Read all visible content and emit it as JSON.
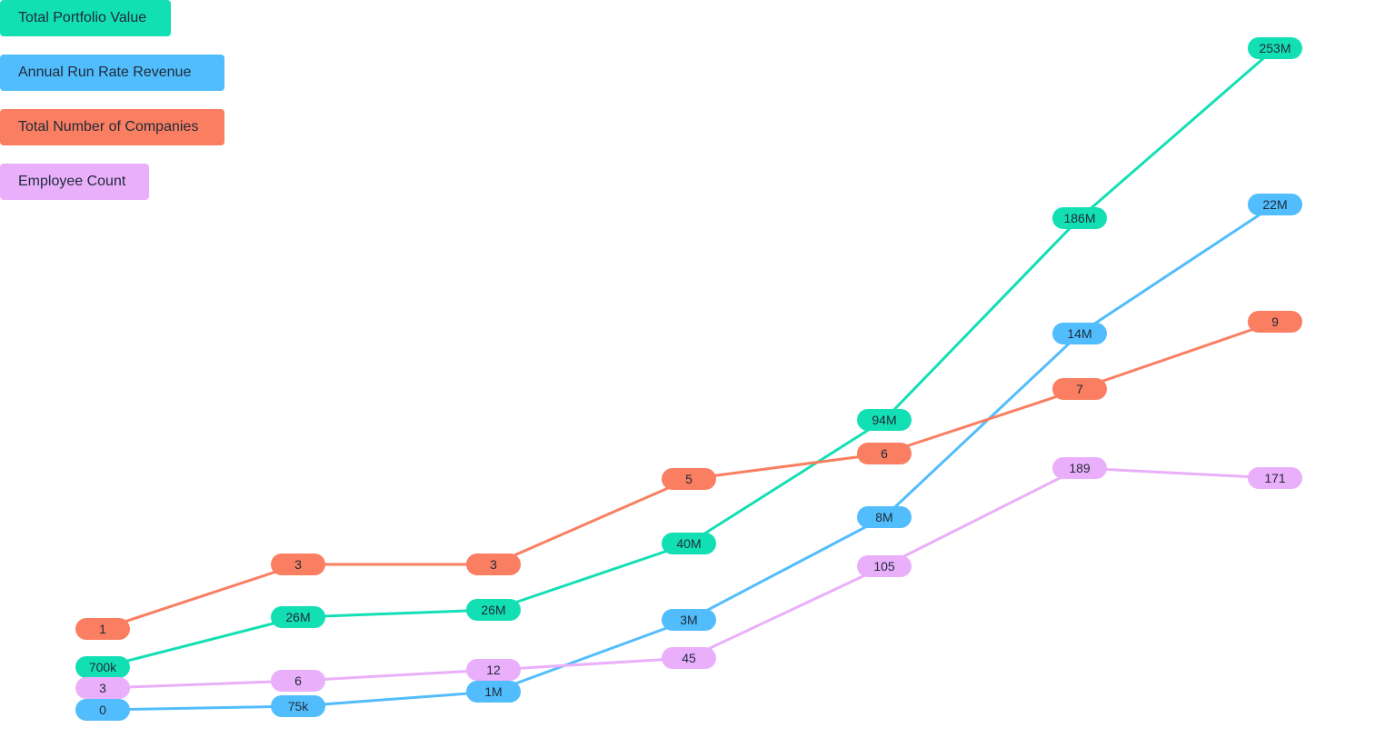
{
  "legend": [
    {
      "label": "Total Portfolio Value",
      "color": "#13dfb5"
    },
    {
      "label": "Annual Run Rate Revenue",
      "color": "#52bdfc"
    },
    {
      "label": "Total Number of Companies",
      "color": "#fa7e61"
    },
    {
      "label": "Employee Count",
      "color": "#eaaffa"
    }
  ],
  "chart_data": {
    "type": "line",
    "categories": [
      "",
      "",
      "",
      "",
      "",
      "",
      ""
    ],
    "series": [
      {
        "name": "Total Portfolio Value",
        "color": "#13dfb5",
        "values": [
          700000,
          26000000,
          26000000,
          40000000,
          94000000,
          186000000,
          253000000
        ],
        "labels": [
          "700k",
          "26M",
          "26M",
          "40M",
          "94M",
          "186M",
          "253M"
        ]
      },
      {
        "name": "Annual Run Rate Revenue",
        "color": "#52bdfc",
        "values": [
          0,
          75000,
          1000000,
          3000000,
          8000000,
          14000000,
          22000000
        ],
        "labels": [
          "0",
          "75k",
          "1M",
          "3M",
          "8M",
          "14M",
          "22M"
        ]
      },
      {
        "name": "Total Number of Companies",
        "color": "#fa7e61",
        "values": [
          1,
          3,
          3,
          5,
          6,
          7,
          9
        ],
        "labels": [
          "1",
          "3",
          "3",
          "5",
          "6",
          "7",
          "9"
        ]
      },
      {
        "name": "Employee Count",
        "color": "#eaaffa",
        "values": [
          3,
          6,
          12,
          45,
          105,
          189,
          171
        ],
        "labels": [
          "3",
          "6",
          "12",
          "45",
          "105",
          "189",
          "171"
        ]
      }
    ],
    "grid": false,
    "legend_position": "top-left"
  }
}
